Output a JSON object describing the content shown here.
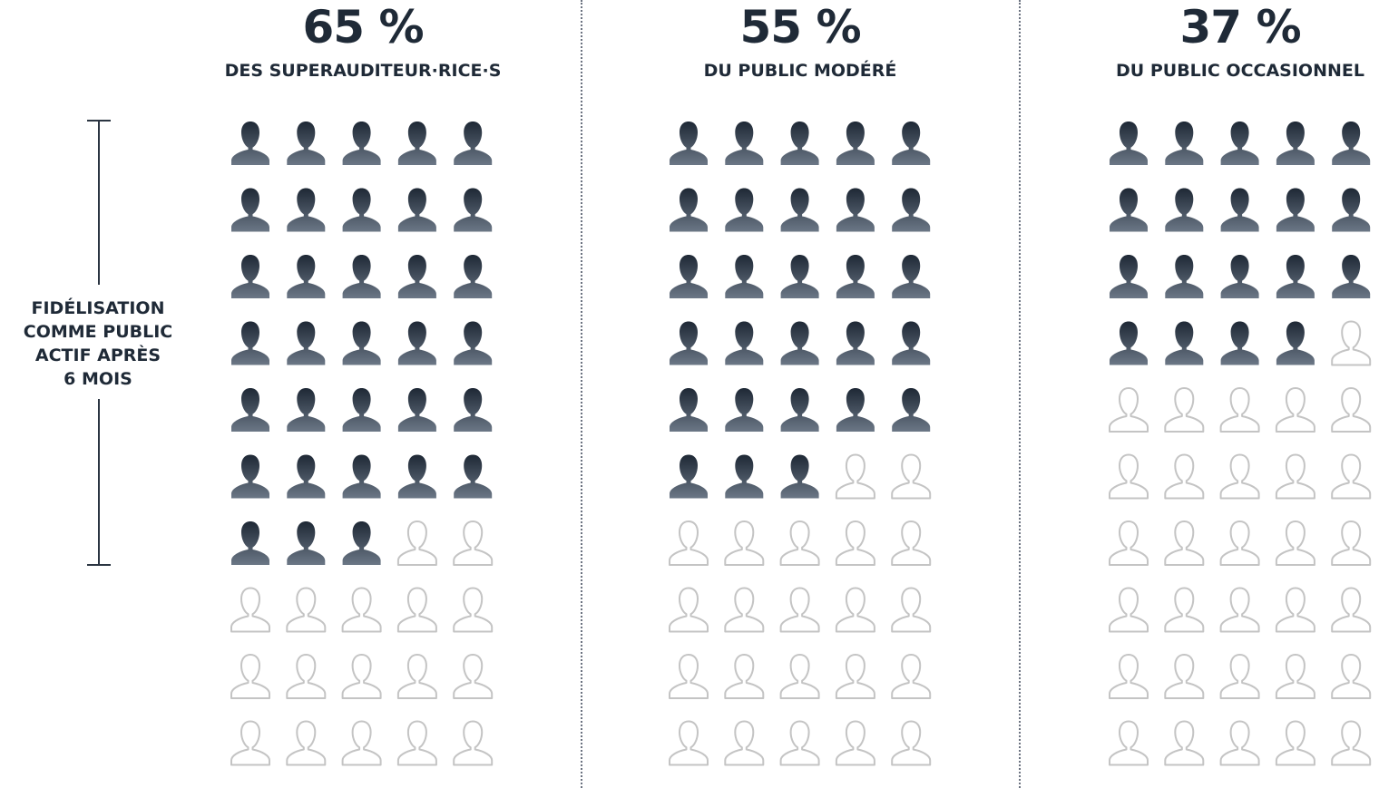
{
  "chart_data": {
    "type": "pictogram",
    "total_icons_per_column": 50,
    "columns": [
      {
        "value_label": "65 %",
        "label": "DES SUPERAUDITEUR·RICE·S",
        "percent": 65,
        "filled": 33
      },
      {
        "value_label": "55 %",
        "label": "DU PUBLIC MODÉRÉ",
        "percent": 55,
        "filled": 28
      },
      {
        "value_label": "37 %",
        "label": "DU PUBLIC OCCASIONNEL",
        "percent": 37,
        "filled": 19
      }
    ],
    "side_label": [
      "FIDÉLISATION",
      "COMME PUBLIC",
      "ACTIF APRÈS",
      "6 MOIS"
    ],
    "colors": {
      "filled_top": "#1e2835",
      "filled_bottom": "#6b7786",
      "empty_stroke": "#c4c4c4",
      "text": "#1f2a37"
    }
  }
}
